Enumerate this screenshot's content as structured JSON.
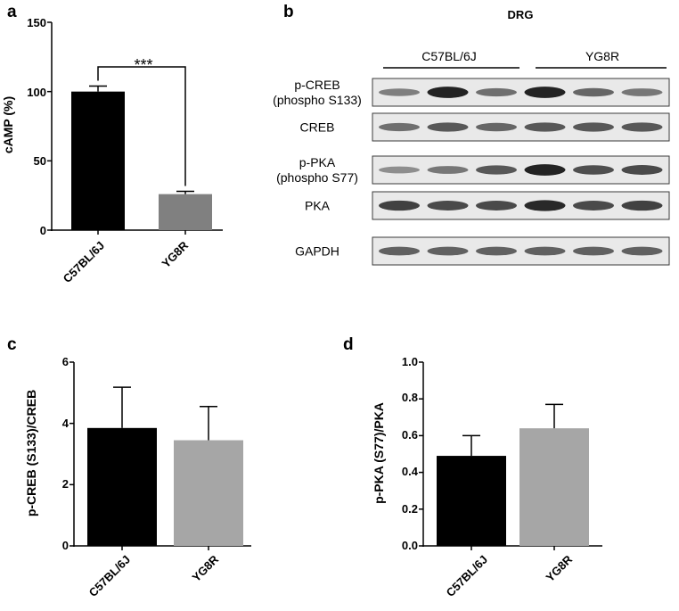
{
  "panels": {
    "a": "a",
    "b": "b",
    "c": "c",
    "d": "d"
  },
  "blot": {
    "title": "DRG",
    "groups": [
      "C57BL/6J",
      "YG8R"
    ],
    "rows": [
      {
        "label_lines": [
          "p-CREB",
          "(phospho S133)"
        ],
        "intensities": [
          0.35,
          0.95,
          0.45,
          0.95,
          0.5,
          0.4
        ]
      },
      {
        "label_lines": [
          "CREB"
        ],
        "intensities": [
          0.45,
          0.6,
          0.5,
          0.6,
          0.6,
          0.6
        ]
      },
      {
        "label_lines": [
          "p-PKA",
          "(phospho S77)"
        ],
        "intensities": [
          0.25,
          0.4,
          0.6,
          0.95,
          0.65,
          0.7
        ]
      },
      {
        "label_lines": [
          "PKA"
        ],
        "intensities": [
          0.75,
          0.7,
          0.7,
          0.9,
          0.7,
          0.75
        ]
      },
      {
        "label_lines": [
          "GAPDH"
        ],
        "intensities": [
          0.55,
          0.55,
          0.55,
          0.55,
          0.55,
          0.55
        ]
      }
    ],
    "colors": {
      "blot_bg": "#e9e9e9",
      "band": "#1a1a1a",
      "frame": "#3a3a3a"
    }
  },
  "chart_data": [
    {
      "panel": "a",
      "type": "bar",
      "categories": [
        "C57BL/6J",
        "YG8R"
      ],
      "values": [
        100,
        26
      ],
      "errors": [
        4,
        2
      ],
      "colors": [
        "#000000",
        "#808080"
      ],
      "ylabel": "cAMP (%)",
      "ylim": [
        0,
        150
      ],
      "yticks": [
        "0",
        "50",
        "100",
        "150"
      ],
      "significance": "***"
    },
    {
      "panel": "c",
      "type": "bar",
      "categories": [
        "C57BL/6J",
        "YG8R"
      ],
      "values": [
        3.85,
        3.45
      ],
      "errors": [
        1.33,
        1.1
      ],
      "colors": [
        "#000000",
        "#a6a6a6"
      ],
      "ylabel": "p-CREB (S133)/CREB",
      "ylim": [
        0,
        6
      ],
      "yticks": [
        "0",
        "2",
        "4",
        "6"
      ]
    },
    {
      "panel": "d",
      "type": "bar",
      "categories": [
        "C57BL/6J",
        "YG8R"
      ],
      "values": [
        0.49,
        0.64
      ],
      "errors": [
        0.11,
        0.13
      ],
      "colors": [
        "#000000",
        "#a6a6a6"
      ],
      "ylabel": "p-PKA (S77)/PKA",
      "ylim": [
        0,
        1
      ],
      "yticks": [
        "0.0",
        "0.2",
        "0.4",
        "0.6",
        "0.8",
        "1.0"
      ]
    }
  ]
}
